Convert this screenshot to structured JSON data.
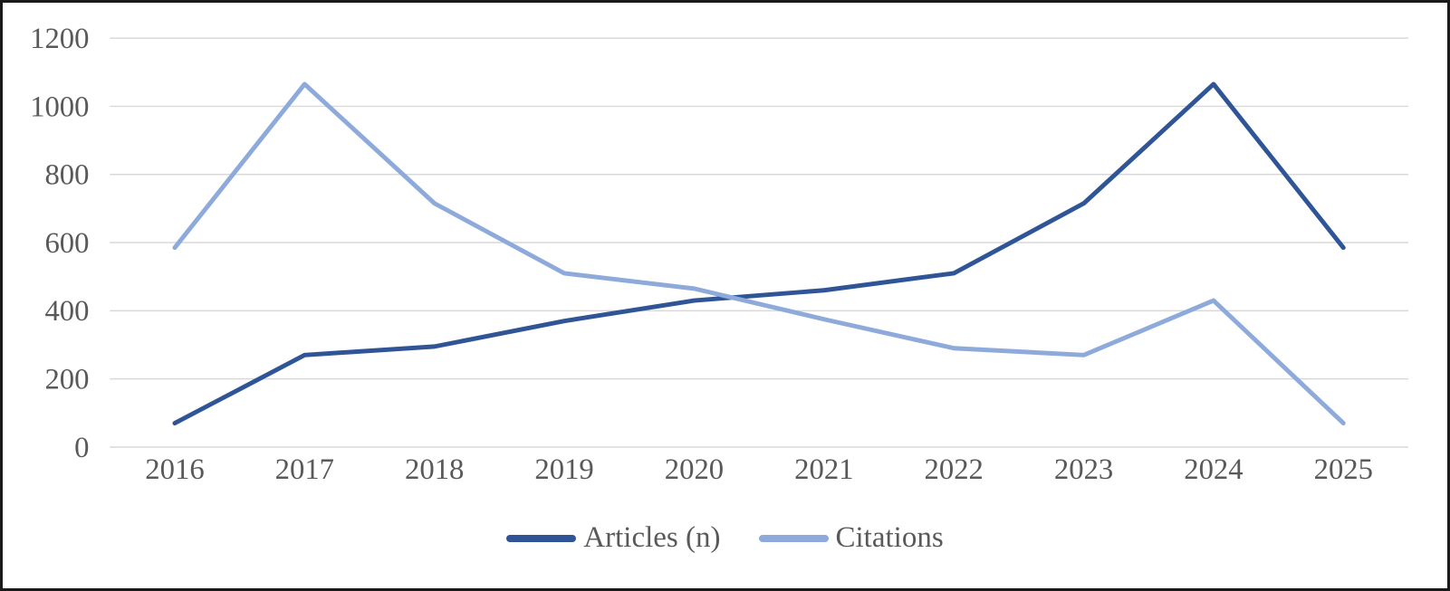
{
  "chart_data": {
    "type": "line",
    "title": "",
    "xlabel": "",
    "ylabel": "",
    "categories": [
      "2016",
      "2017",
      "2018",
      "2019",
      "2020",
      "2021",
      "2022",
      "2023",
      "2024",
      "2025"
    ],
    "series": [
      {
        "name": "Articles (n)",
        "color": "#2F5597",
        "values": [
          70,
          270,
          295,
          370,
          430,
          460,
          510,
          715,
          1065,
          585
        ]
      },
      {
        "name": "Citations",
        "color": "#8EAADB",
        "values": [
          585,
          1065,
          715,
          510,
          465,
          375,
          290,
          270,
          430,
          70
        ]
      }
    ],
    "y_axis": {
      "min": 0,
      "max": 1200,
      "step": 200,
      "ticks": [
        "0",
        "200",
        "400",
        "600",
        "800",
        "1000",
        "1200"
      ]
    },
    "x_axis": {
      "ticks": [
        "2016",
        "2017",
        "2018",
        "2019",
        "2020",
        "2021",
        "2022",
        "2023",
        "2024",
        "2025"
      ]
    },
    "legend_position": "bottom",
    "grid": "horizontal",
    "style": {
      "background": "#FFFFFF",
      "frame_border": "#1A1A1A",
      "gridline_color": "#D9D9D9",
      "tick_text_color": "#595959",
      "line_width": 5
    }
  }
}
